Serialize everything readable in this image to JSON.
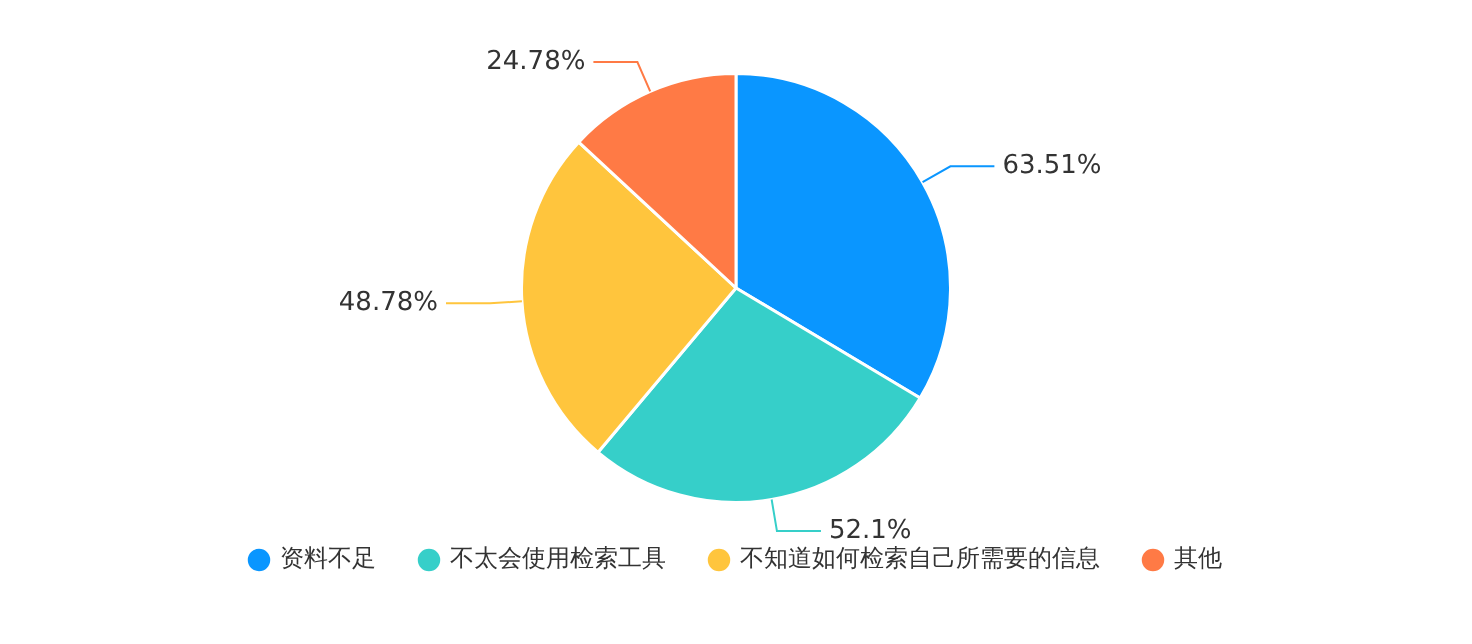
{
  "chart_data": {
    "type": "pie",
    "categories": [
      "资料不足",
      "不太会使用检索工具",
      "不知道如何检索自己所需要的信息",
      "其他"
    ],
    "values": [
      63.51,
      52.1,
      48.78,
      24.78
    ],
    "colors": [
      "#0a96ff",
      "#36cfc9",
      "#ffc53d",
      "#ff7a45"
    ],
    "value_labels": [
      "63.51%",
      "52.1%",
      "48.78%",
      "24.78%"
    ],
    "legend": "bottom"
  }
}
